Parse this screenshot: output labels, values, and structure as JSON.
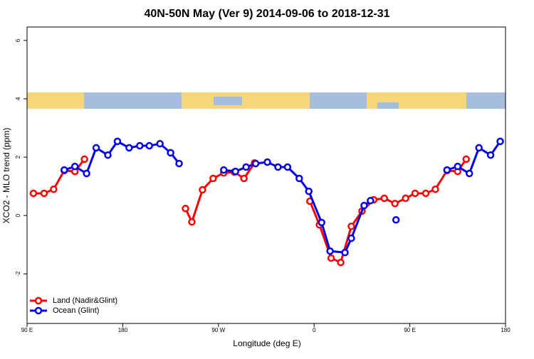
{
  "chart_data": {
    "type": "line",
    "title": "40N-50N May (Ver 9)   2014-09-06 to 2018-12-31",
    "x_label": "Longitude (deg E)",
    "y_label": "XCO2 - MLO trend (ppm)",
    "xlim": [
      -270,
      180
    ],
    "xticks": [
      {
        "value": -270,
        "label": "90 E"
      },
      {
        "value": -180,
        "label": "180"
      },
      {
        "value": -90,
        "label": "90 W"
      },
      0,
      {
        "value": 90,
        "label": "90 E"
      },
      {
        "value": 180,
        "label": "180"
      }
    ],
    "ylim": [
      -3.7,
      6.46
    ],
    "yticks": [
      -2,
      0,
      2,
      4,
      6
    ],
    "legend": "bottom-left",
    "series": [
      {
        "name": "Land (Nadir&Glint)",
        "color": "#ff0000",
        "x": [
          -264,
          -254,
          -245,
          -235,
          -225,
          -216,
          null,
          -121,
          -115,
          -105,
          -95,
          -85,
          -75,
          -66,
          -56,
          null,
          -4,
          5,
          16,
          25,
          35,
          45,
          56,
          66,
          76,
          86,
          95,
          105,
          114,
          125,
          135,
          143
        ],
        "values": [
          0.76,
          0.76,
          0.9,
          1.54,
          1.51,
          1.93,
          null,
          0.24,
          -0.22,
          0.88,
          1.27,
          1.46,
          1.49,
          1.27,
          1.8,
          null,
          0.49,
          -0.32,
          -1.46,
          -1.61,
          -0.37,
          0.15,
          0.54,
          0.59,
          0.41,
          0.59,
          0.76,
          0.76,
          0.9,
          1.54,
          1.51,
          1.93
        ]
      },
      {
        "name": "Ocean (Glint)",
        "color": "#0000ee",
        "x": [
          -235,
          -225,
          -214,
          -205,
          -194,
          -185,
          -174,
          -164,
          -155,
          -145,
          -135,
          -127,
          null,
          -85,
          -74,
          -64,
          -55,
          -44,
          -34,
          -25,
          -14,
          -5,
          7,
          15,
          29,
          35,
          47,
          53,
          null,
          77,
          null,
          125,
          135,
          146,
          155,
          166,
          175
        ],
        "values": [
          1.56,
          1.68,
          1.44,
          2.32,
          2.07,
          2.54,
          2.32,
          2.39,
          2.39,
          2.46,
          2.15,
          1.78,
          null,
          1.56,
          1.51,
          1.66,
          1.78,
          1.83,
          1.66,
          1.66,
          1.27,
          0.83,
          -0.24,
          -1.22,
          -1.27,
          -0.78,
          0.34,
          0.51,
          null,
          -0.15,
          null,
          1.56,
          1.68,
          1.44,
          2.32,
          2.07,
          2.54
        ]
      }
    ]
  }
}
